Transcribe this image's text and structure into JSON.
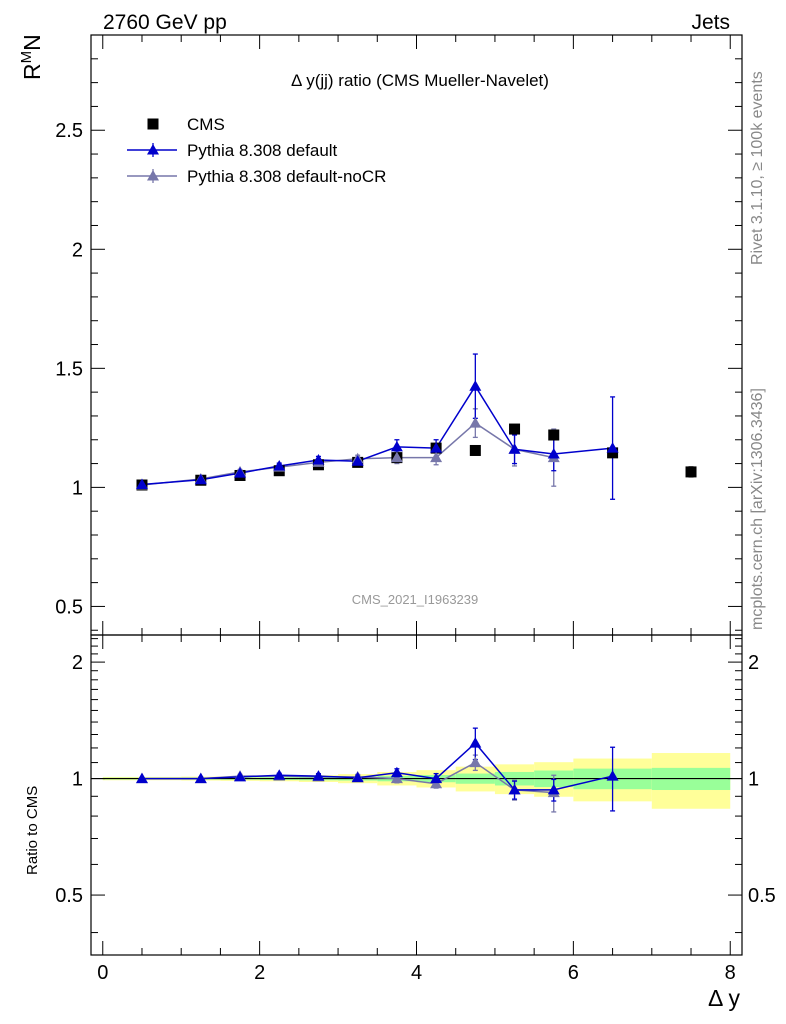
{
  "header": {
    "left": "2760 GeV pp",
    "right": "Jets"
  },
  "side_texts": {
    "rivet": "Rivet 3.1.10, ≥ 100k events",
    "mcplots": "mcplots.cern.ch [arXiv:1306.3436]"
  },
  "chart_data": {
    "type": "scatter",
    "title": "Δ y(jj) ratio (CMS Mueller-Navelet)",
    "watermark": "CMS_2021_I1963239",
    "xlabel": "Δ y",
    "ylabel": "R^M_N",
    "ylabel_main": "R",
    "ylabel_sup": "M",
    "ylabel_tail": "N",
    "ratio_ylabel": "Ratio to CMS",
    "xlim": [
      -0.15,
      8.15
    ],
    "ylim": [
      0.38,
      2.9
    ],
    "ratio_ylim": [
      0.35,
      2.35
    ],
    "xticks": [
      0,
      2,
      4,
      6,
      8
    ],
    "xtick_labels": [
      "0",
      "2",
      "4",
      "6",
      "8"
    ],
    "yticks": [
      0.5,
      1,
      1.5,
      2,
      2.5
    ],
    "ytick_labels": [
      "0.5",
      "1",
      "1.5",
      "2",
      "2.5"
    ],
    "ratio_yticks": [
      0.5,
      1,
      2
    ],
    "ratio_ytick_labels": [
      "0.5",
      "1",
      "2"
    ],
    "ratio_ytick_right_labels": [
      "0.5",
      "1",
      "2"
    ],
    "legend": [
      "CMS",
      "Pythia 8.308 default",
      "Pythia 8.308 default-noCR"
    ],
    "series": [
      {
        "name": "CMS",
        "color": "#000000",
        "marker": "square",
        "x": [
          0.5,
          1.25,
          1.75,
          2.25,
          2.75,
          3.25,
          3.75,
          4.25,
          4.75,
          5.25,
          5.75,
          6.5,
          7.5
        ],
        "y": [
          1.01,
          1.03,
          1.05,
          1.07,
          1.095,
          1.105,
          1.125,
          1.165,
          1.155,
          1.245,
          1.22,
          1.145,
          1.065
        ],
        "xlo": [
          0.0,
          1.0,
          1.5,
          2.0,
          2.5,
          3.0,
          3.5,
          4.0,
          4.5,
          5.0,
          5.5,
          6.0,
          7.0
        ],
        "xhi": [
          1.0,
          1.5,
          2.0,
          2.5,
          3.0,
          3.5,
          4.0,
          4.5,
          5.0,
          5.5,
          6.0,
          7.0,
          8.0
        ],
        "yerr_inner": [
          0.005,
          0.006,
          0.007,
          0.009,
          0.011,
          0.013,
          0.018,
          0.025,
          0.035,
          0.05,
          0.06,
          0.07,
          0.07
        ],
        "yerr_total": [
          0.01,
          0.012,
          0.014,
          0.017,
          0.022,
          0.03,
          0.045,
          0.06,
          0.085,
          0.11,
          0.125,
          0.145,
          0.175
        ]
      },
      {
        "name": "Pythia 8.308 default",
        "color": "#0000cc",
        "marker": "triangle",
        "x": [
          0.5,
          1.25,
          1.75,
          2.25,
          2.75,
          3.25,
          3.75,
          4.25,
          4.75,
          5.25,
          5.75,
          6.5
        ],
        "y": [
          1.012,
          1.032,
          1.06,
          1.09,
          1.115,
          1.11,
          1.17,
          1.165,
          1.425,
          1.16,
          1.14,
          1.165
        ],
        "yerr": [
          0.005,
          0.008,
          0.01,
          0.012,
          0.015,
          0.015,
          0.03,
          0.035,
          0.135,
          0.06,
          0.07,
          0.215
        ],
        "ratio": [
          1.0,
          1.0,
          1.01,
          1.02,
          1.015,
          1.005,
          1.035,
          1.0,
          1.235,
          0.935,
          0.935,
          1.015
        ],
        "ratio_err": [
          0.005,
          0.008,
          0.01,
          0.012,
          0.015,
          0.015,
          0.025,
          0.03,
          0.115,
          0.05,
          0.06,
          0.19
        ]
      },
      {
        "name": "Pythia 8.308 default-noCR",
        "color": "#7777aa",
        "marker": "triangle",
        "x": [
          0.5,
          1.25,
          1.75,
          2.25,
          2.75,
          3.25,
          3.75,
          4.25,
          4.75,
          5.25,
          5.75
        ],
        "y": [
          1.01,
          1.035,
          1.065,
          1.085,
          1.105,
          1.12,
          1.125,
          1.125,
          1.27,
          1.16,
          1.125
        ],
        "yerr": [
          0.005,
          0.008,
          0.01,
          0.012,
          0.015,
          0.015,
          0.025,
          0.03,
          0.06,
          0.07,
          0.12
        ],
        "ratio": [
          1.0,
          1.0,
          1.015,
          1.015,
          1.01,
          1.01,
          1.0,
          0.97,
          1.1,
          0.935,
          0.92
        ],
        "ratio_err": [
          0.005,
          0.008,
          0.01,
          0.012,
          0.015,
          0.015,
          0.025,
          0.025,
          0.05,
          0.055,
          0.1
        ]
      }
    ]
  }
}
